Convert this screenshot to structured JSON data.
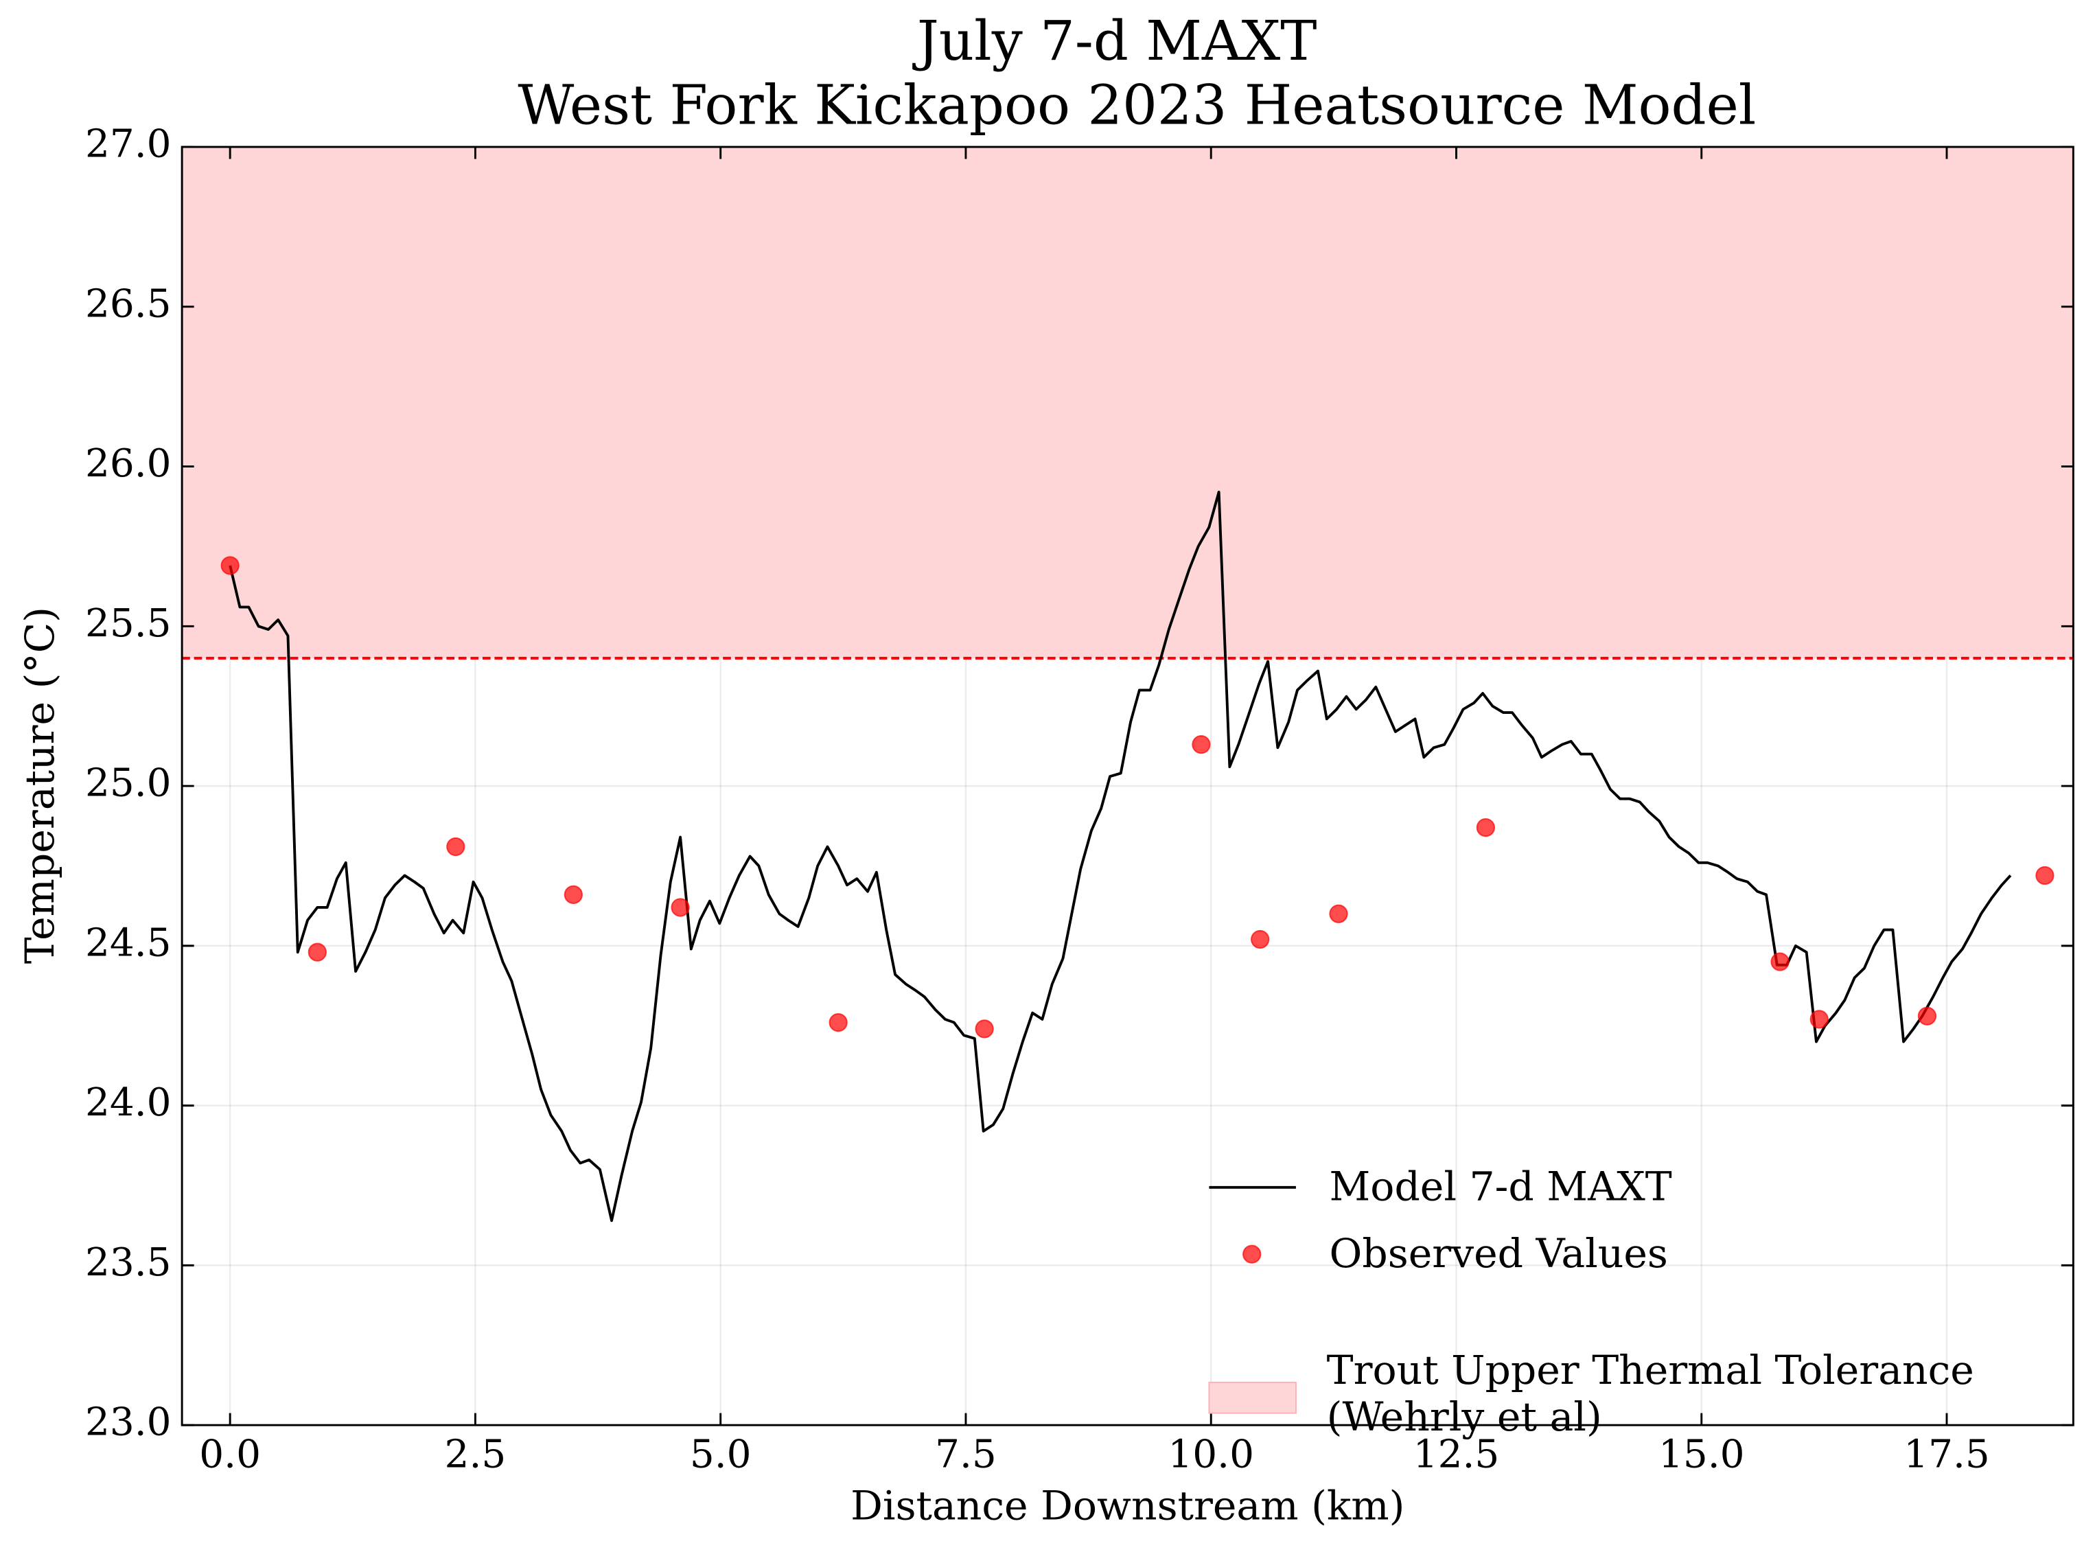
{
  "chart_data": {
    "type": "line",
    "title": "July 7-d MAXT",
    "subtitle": "West Fork Kickapoo 2023 Heatsource Model",
    "x_label": "Distance Downstream (km)",
    "y_label": "Temperature (°C)",
    "xlim": [
      -0.49,
      18.79
    ],
    "ylim": [
      23,
      27
    ],
    "xticks": [
      {
        "value": 0,
        "label": "0.0"
      },
      2.5,
      {
        "value": 5,
        "label": "5.0"
      },
      7.5,
      {
        "value": 10,
        "label": "10.0"
      },
      12.5,
      {
        "value": 15,
        "label": "15.0"
      },
      17.5
    ],
    "yticks": [
      {
        "value": 23,
        "label": "23.0"
      },
      23.5,
      {
        "value": 24,
        "label": "24.0"
      },
      24.5,
      {
        "value": 25,
        "label": "25.0"
      },
      25.5,
      {
        "value": 26,
        "label": "26.0"
      },
      26.5,
      {
        "value": 27,
        "label": "27.0"
      }
    ],
    "grid": true,
    "legend": "lower right",
    "series": [
      {
        "name": "Model 7-d MAXT",
        "type": "line",
        "color": "#000000",
        "x": [
          0,
          0.1,
          0.19,
          0.29,
          0.39,
          0.49,
          0.59,
          0.69,
          0.79,
          0.89,
          0.99,
          1.09,
          1.18,
          1.28,
          1.38,
          1.48,
          1.58,
          1.68,
          1.78,
          1.88,
          1.97,
          2.08,
          2.18,
          2.27,
          2.38,
          2.48,
          2.57,
          2.67,
          2.78,
          2.87,
          2.97,
          3.08,
          3.17,
          3.27,
          3.38,
          3.47,
          3.57,
          3.66,
          3.77,
          3.89,
          3.99,
          4.1,
          4.19,
          4.29,
          4.39,
          4.49,
          4.59,
          4.7,
          4.79,
          4.89,
          4.99,
          5.09,
          5.19,
          5.3,
          5.39,
          5.49,
          5.6,
          5.69,
          5.79,
          5.9,
          5.99,
          6.09,
          6.2,
          6.29,
          6.39,
          6.5,
          6.59,
          6.69,
          6.78,
          6.89,
          6.99,
          7.08,
          7.19,
          7.29,
          7.38,
          7.48,
          7.59,
          7.68,
          7.78,
          7.88,
          7.98,
          8.08,
          8.18,
          8.28,
          8.38,
          8.49,
          8.58,
          8.67,
          8.78,
          8.88,
          8.97,
          9.08,
          9.18,
          9.27,
          9.38,
          9.47,
          9.57,
          9.68,
          9.78,
          9.87,
          9.98,
          10.08,
          10.19,
          10.28,
          10.38,
          10.49,
          10.58,
          10.68,
          10.79,
          10.88,
          10.98,
          11.09,
          11.18,
          11.28,
          11.38,
          11.48,
          11.58,
          11.68,
          11.78,
          11.88,
          11.98,
          12.08,
          12.17,
          12.27,
          12.38,
          12.47,
          12.57,
          12.68,
          12.77,
          12.87,
          12.98,
          13.07,
          13.17,
          13.28,
          13.37,
          13.47,
          13.58,
          13.67,
          13.77,
          13.88,
          13.97,
          14.07,
          14.17,
          14.27,
          14.37,
          14.46,
          14.57,
          14.67,
          14.77,
          14.87,
          14.97,
          15.06,
          15.17,
          15.27,
          15.36,
          15.47,
          15.57,
          15.66,
          15.77,
          15.87,
          15.96,
          16.07,
          16.17,
          16.26,
          16.37,
          16.46,
          16.56,
          16.66,
          16.76,
          16.86,
          16.95,
          17.06,
          17.16,
          17.25,
          17.36,
          17.46,
          17.55,
          17.66,
          17.75,
          17.85,
          17.96,
          18.06,
          18.15
        ],
        "values": [
          25.69,
          25.56,
          25.56,
          25.5,
          25.49,
          25.52,
          25.47,
          24.48,
          24.58,
          24.62,
          24.62,
          24.71,
          24.76,
          24.42,
          24.48,
          24.55,
          24.65,
          24.69,
          24.72,
          24.7,
          24.68,
          24.6,
          24.54,
          24.58,
          24.54,
          24.7,
          24.65,
          24.55,
          24.45,
          24.39,
          24.28,
          24.16,
          24.05,
          23.97,
          23.92,
          23.86,
          23.82,
          23.83,
          23.8,
          23.64,
          23.78,
          23.92,
          24.01,
          24.18,
          24.47,
          24.7,
          24.84,
          24.49,
          24.58,
          24.64,
          24.57,
          24.65,
          24.72,
          24.78,
          24.75,
          24.66,
          24.6,
          24.58,
          24.56,
          24.65,
          24.75,
          24.81,
          24.75,
          24.69,
          24.71,
          24.67,
          24.73,
          24.55,
          24.41,
          24.38,
          24.36,
          24.34,
          24.3,
          24.27,
          24.26,
          24.22,
          24.21,
          23.92,
          23.94,
          23.99,
          24.1,
          24.2,
          24.29,
          24.27,
          24.38,
          24.46,
          24.6,
          24.74,
          24.86,
          24.93,
          25.03,
          25.04,
          25.2,
          25.3,
          25.3,
          25.38,
          25.49,
          25.59,
          25.68,
          25.75,
          25.81,
          25.92,
          25.06,
          25.13,
          25.22,
          25.32,
          25.39,
          25.12,
          25.2,
          25.3,
          25.33,
          25.36,
          25.21,
          25.24,
          25.28,
          25.24,
          25.27,
          25.31,
          25.24,
          25.17,
          25.19,
          25.21,
          25.09,
          25.12,
          25.13,
          25.18,
          25.24,
          25.26,
          25.29,
          25.25,
          25.23,
          25.23,
          25.19,
          25.15,
          25.09,
          25.11,
          25.13,
          25.14,
          25.1,
          25.1,
          25.05,
          24.99,
          24.96,
          24.96,
          24.95,
          24.92,
          24.89,
          24.84,
          24.81,
          24.79,
          24.76,
          24.76,
          24.75,
          24.73,
          24.71,
          24.7,
          24.67,
          24.66,
          24.44,
          24.44,
          24.5,
          24.48,
          24.2,
          24.25,
          24.29,
          24.33,
          24.4,
          24.43,
          24.5,
          24.55,
          24.55,
          24.2,
          24.24,
          24.28,
          24.34,
          24.4,
          24.45,
          24.49,
          24.54,
          24.6,
          24.65,
          24.69,
          24.72
        ]
      },
      {
        "name": "Observed Values",
        "type": "scatter",
        "color": "#ff0000",
        "x": [
          0,
          0.89,
          2.3,
          3.5,
          4.59,
          6.2,
          7.69,
          9.9,
          10.5,
          11.3,
          12.8,
          15.8,
          16.2,
          17.3,
          18.5
        ],
        "values": [
          25.69,
          24.48,
          24.81,
          24.66,
          24.62,
          24.26,
          24.24,
          25.13,
          24.52,
          24.6,
          24.87,
          24.45,
          24.27,
          24.28,
          24.72
        ]
      }
    ],
    "bands": [
      {
        "name": "Trout Upper Thermal Tolerance\n(Wehrly et al)",
        "from": 25.4,
        "to": 27,
        "color": "#ffd6d8",
        "line_color": "#ff0000"
      }
    ]
  }
}
